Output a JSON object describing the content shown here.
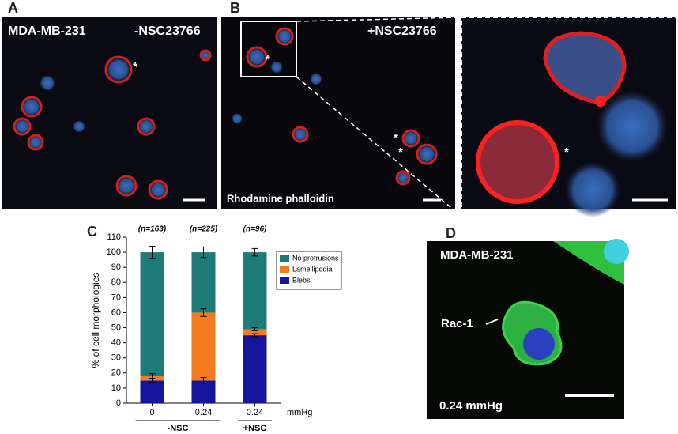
{
  "panels": {
    "a": {
      "letter": "A",
      "cell_line": "MDA-MB-231",
      "treatment": "-NSC23766",
      "asterisk": "*"
    },
    "b": {
      "letter": "B",
      "treatment": "+NSC23766",
      "stain": "Rhodamine phalloidin",
      "asterisk": "*"
    },
    "c": {
      "letter": "C"
    },
    "d": {
      "letter": "D",
      "cell_line": "MDA-MB-231",
      "marker": "Rac-1",
      "condition": "0.24 mmHg"
    }
  },
  "chart_data": {
    "type": "bar",
    "stacked": true,
    "y_label": "% of cell morphologies",
    "x_unit": "mmHg",
    "categories": [
      "0",
      "0.24",
      "0.24"
    ],
    "groups": [
      "-NSC",
      "+NSC"
    ],
    "annotations": [
      "(n=163)",
      "(n=225)",
      "(n=96)"
    ],
    "series": [
      {
        "name": "Blebs",
        "color": "#16169c",
        "values": [
          15,
          15,
          45
        ],
        "errors": [
          1,
          2,
          1
        ]
      },
      {
        "name": "Lamellipodia",
        "color": "#f47b20",
        "values": [
          3,
          45,
          4
        ],
        "errors": [
          1.5,
          2.5,
          1
        ]
      },
      {
        "name": "No protrusions",
        "color": "#1f7b78",
        "values": [
          82,
          40,
          51
        ],
        "errors": [
          4,
          3.5,
          2.5
        ]
      }
    ],
    "ylim": [
      0,
      110
    ],
    "yticks": [
      0,
      10,
      20,
      30,
      40,
      50,
      60,
      70,
      80,
      90,
      100,
      110
    ]
  }
}
